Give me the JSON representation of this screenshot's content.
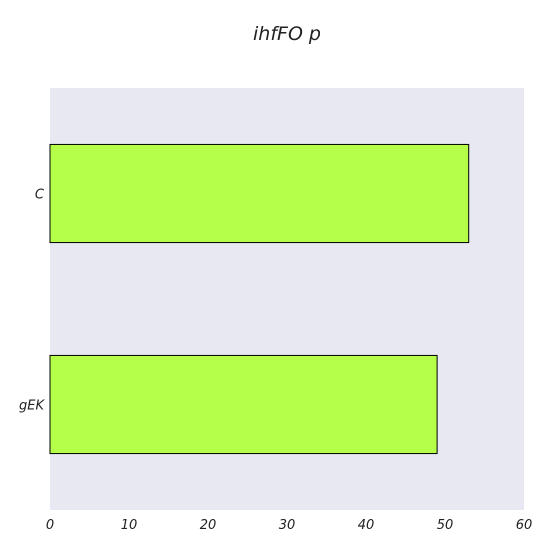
{
  "chart_data": {
    "type": "bar",
    "orientation": "horizontal",
    "title": "ihfFO p",
    "xlabel": "",
    "ylabel": "",
    "categories": [
      "C",
      "gEK"
    ],
    "values": [
      53,
      49
    ],
    "xlim": [
      0,
      60
    ],
    "xticks": [
      0,
      10,
      20,
      30,
      40,
      50,
      60
    ],
    "grid": false,
    "colors": {
      "plot_background": "#e8e8f2",
      "bar_fill": "#b5ff4a",
      "bar_edge": "#000000"
    }
  }
}
